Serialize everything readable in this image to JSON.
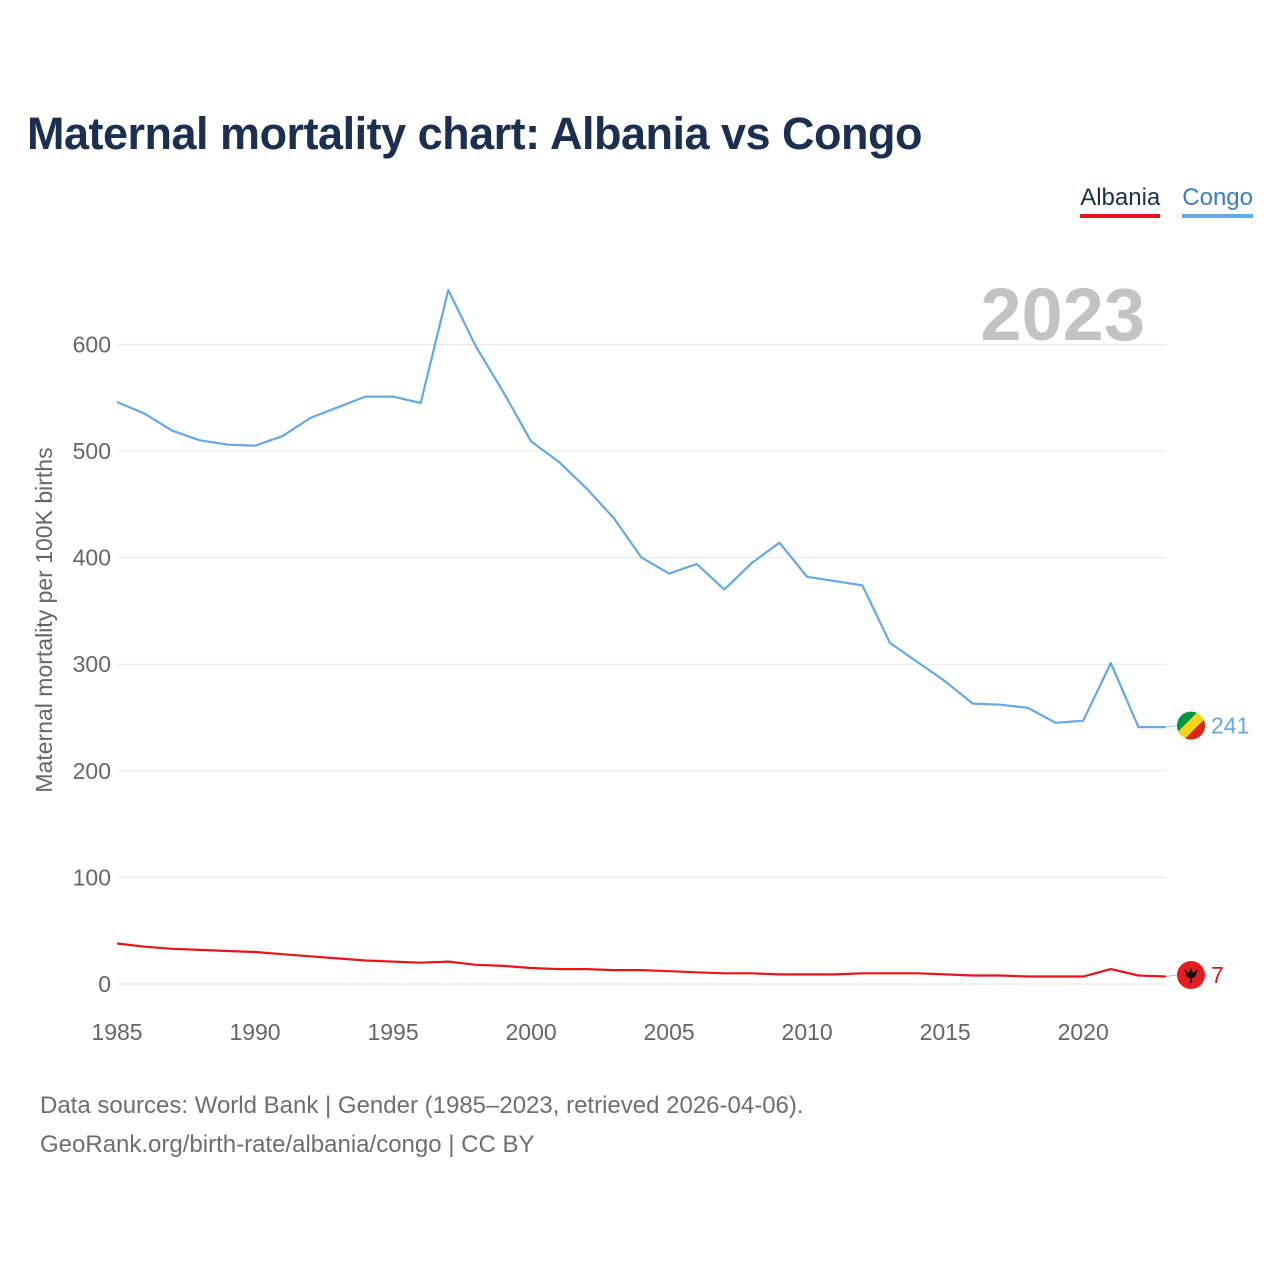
{
  "title": "Maternal mortality chart: Albania vs Congo",
  "legend": [
    {
      "name": "Albania",
      "color": "#e8131b"
    },
    {
      "name": "Congo",
      "color": "#64a8e6"
    }
  ],
  "year_label": "2023",
  "footer": {
    "line1": "Data sources: World Bank | Gender (1985–2023, retrieved 2026-04-06).",
    "line2": "GeoRank.org/birth-rate/albania/congo | CC BY"
  },
  "chart_data": {
    "type": "line",
    "title": "Maternal mortality chart: Albania vs Congo",
    "xlabel": "",
    "ylabel": "Maternal mortality per 100K births",
    "xlim": [
      1985,
      2023
    ],
    "ylim": [
      0,
      650
    ],
    "x_ticks": [
      1985,
      1990,
      1995,
      2000,
      2005,
      2010,
      2015,
      2020
    ],
    "y_ticks": [
      0,
      100,
      200,
      300,
      400,
      500,
      600
    ],
    "grid": true,
    "legend_position": "top-right",
    "x": [
      1985,
      1986,
      1987,
      1988,
      1989,
      1990,
      1991,
      1992,
      1993,
      1994,
      1995,
      1996,
      1997,
      1998,
      1999,
      2000,
      2001,
      2002,
      2003,
      2004,
      2005,
      2006,
      2007,
      2008,
      2009,
      2010,
      2011,
      2012,
      2013,
      2014,
      2015,
      2016,
      2017,
      2018,
      2019,
      2020,
      2021,
      2022,
      2023
    ],
    "series": [
      {
        "name": "Albania",
        "color": "#e8131b",
        "values": [
          38,
          35,
          33,
          32,
          31,
          30,
          28,
          26,
          24,
          22,
          21,
          20,
          21,
          18,
          17,
          15,
          14,
          14,
          13,
          13,
          12,
          11,
          10,
          10,
          9,
          9,
          9,
          10,
          10,
          10,
          9,
          8,
          8,
          7,
          7,
          7,
          14,
          8,
          7
        ],
        "end_label": "7",
        "flag": "albania-flag-icon"
      },
      {
        "name": "Congo",
        "color": "#64a8e6",
        "values": [
          546,
          535,
          519,
          510,
          506,
          505,
          514,
          531,
          541,
          551,
          551,
          545,
          651,
          598,
          555,
          509,
          490,
          465,
          437,
          400,
          385,
          394,
          370,
          395,
          414,
          382,
          378,
          374,
          320,
          302,
          284,
          263,
          262,
          259,
          245,
          247,
          301,
          241,
          241
        ],
        "end_label": "241",
        "flag": "congo-flag-icon"
      }
    ]
  }
}
